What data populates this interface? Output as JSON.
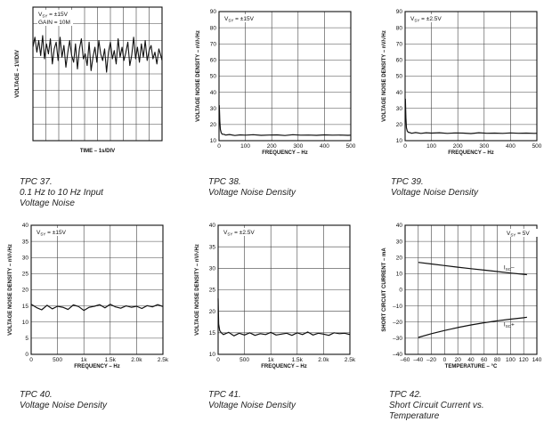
{
  "charts": [
    {
      "id": "tpc37",
      "caption_num": "TPC 37.",
      "caption_text": "0.1 Hz to 10 Hz Input\nVoltage Noise",
      "chart_data": {
        "type": "line",
        "xlabel": "TIME – 1s/DIV",
        "ylabel": "VOLTAGE – 1V/DIV",
        "annotations": [
          "VSY = ±15V",
          "GAIN = 10M"
        ],
        "divisions_x": 10,
        "divisions_y": 8,
        "x": [
          0,
          0.15,
          0.3,
          0.45,
          0.6,
          0.75,
          0.9,
          1.05,
          1.2,
          1.35,
          1.5,
          1.65,
          1.8,
          1.95,
          2.1,
          2.25,
          2.4,
          2.55,
          2.7,
          2.85,
          3.0,
          3.15,
          3.3,
          3.45,
          3.6,
          3.75,
          3.9,
          4.05,
          4.2,
          4.35,
          4.5,
          4.65,
          4.8,
          4.95,
          5.1,
          5.25,
          5.4,
          5.55,
          5.7,
          5.85,
          6.0,
          6.15,
          6.3,
          6.45,
          6.6,
          6.75,
          6.9,
          7.05,
          7.2,
          7.35,
          7.5,
          7.65,
          7.8,
          7.95,
          8.1,
          8.25,
          8.4,
          8.55,
          8.7,
          8.85,
          9.0,
          9.15,
          9.3,
          9.45,
          9.6,
          9.75,
          9.9,
          10.0
        ],
        "y": [
          5.6,
          6.2,
          5.3,
          6.0,
          5.1,
          6.3,
          4.9,
          5.8,
          5.2,
          6.1,
          4.6,
          5.5,
          5.9,
          4.8,
          6.2,
          5.0,
          5.7,
          4.4,
          5.3,
          6.0,
          5.1,
          4.7,
          5.8,
          4.3,
          5.5,
          6.1,
          4.9,
          5.2,
          4.5,
          5.9,
          4.2,
          5.0,
          5.6,
          4.7,
          6.0,
          5.2,
          4.8,
          5.5,
          4.1,
          5.3,
          5.9,
          4.9,
          5.4,
          4.6,
          6.1,
          5.0,
          5.6,
          4.8,
          5.3,
          5.9,
          4.5,
          5.1,
          6.2,
          4.9,
          5.6,
          4.7,
          5.8,
          5.0,
          6.0,
          4.8,
          5.4,
          5.7,
          4.9,
          5.3,
          4.6,
          5.5,
          5.1,
          4.8
        ]
      }
    },
    {
      "id": "tpc38",
      "caption_num": "TPC 38.",
      "caption_text": "Voltage Noise Density",
      "chart_data": {
        "type": "line",
        "xlabel": "FREQUENCY – Hz",
        "ylabel": "VOLTAGE NOISE DENSITY – nV/√Hz",
        "annotations": [
          "VSY = ±15V"
        ],
        "xlim": [
          0,
          500
        ],
        "ylim": [
          10,
          90
        ],
        "xticks": [
          "0",
          "100",
          "200",
          "300",
          "400",
          "500"
        ],
        "yticks": [
          "10",
          "20",
          "30",
          "40",
          "50",
          "60",
          "70",
          "80",
          "90"
        ],
        "x": [
          1,
          3,
          5,
          8,
          12,
          18,
          25,
          40,
          60,
          80,
          100,
          130,
          160,
          190,
          220,
          250,
          280,
          310,
          340,
          370,
          400,
          430,
          460,
          490,
          500
        ],
        "y": [
          32,
          22,
          17,
          15,
          14,
          14,
          13.5,
          13.8,
          13.2,
          13.6,
          13.4,
          13.7,
          13.3,
          13.5,
          13.6,
          13.2,
          13.7,
          13.4,
          13.5,
          13.3,
          13.6,
          13.4,
          13.5,
          13.3,
          13.4
        ]
      }
    },
    {
      "id": "tpc39",
      "caption_num": "TPC 39.",
      "caption_text": "Voltage Noise Density",
      "chart_data": {
        "type": "line",
        "xlabel": "FREQUENCY – Hz",
        "ylabel": "VOLTAGE NOISE DENSITY – nV/√Hz",
        "annotations": [
          "VSY = ±2.5V"
        ],
        "xlim": [
          0,
          500
        ],
        "ylim": [
          10,
          90
        ],
        "xticks": [
          "0",
          "100",
          "200",
          "300",
          "400",
          "500"
        ],
        "yticks": [
          "10",
          "20",
          "30",
          "40",
          "50",
          "60",
          "70",
          "80",
          "90"
        ],
        "x": [
          1,
          3,
          5,
          8,
          12,
          18,
          25,
          40,
          60,
          80,
          100,
          130,
          160,
          190,
          220,
          250,
          280,
          310,
          340,
          370,
          400,
          430,
          460,
          490,
          500
        ],
        "y": [
          36,
          24,
          18,
          16,
          15.2,
          15,
          14.6,
          15,
          14.5,
          14.9,
          14.7,
          14.9,
          14.5,
          14.8,
          14.7,
          14.4,
          14.9,
          14.6,
          14.7,
          14.5,
          14.8,
          14.6,
          14.7,
          14.5,
          14.6
        ]
      }
    },
    {
      "id": "tpc40",
      "caption_num": "TPC 40.",
      "caption_text": "Voltage Noise Density",
      "chart_data": {
        "type": "line",
        "xlabel": "FREQUENCY – Hz",
        "ylabel": "VOLTAGE NOISE DENSITY – nV/√Hz",
        "annotations": [
          "VSY = ±15V"
        ],
        "xlim": [
          0,
          2500
        ],
        "ylim": [
          0,
          40
        ],
        "xticks": [
          "0",
          "500",
          "1k",
          "1.5k",
          "2.0k",
          "2.5k"
        ],
        "yticks": [
          "0",
          "5",
          "10",
          "15",
          "20",
          "25",
          "30",
          "35",
          "40"
        ],
        "x": [
          0,
          100,
          200,
          300,
          400,
          500,
          600,
          700,
          800,
          900,
          1000,
          1100,
          1200,
          1300,
          1400,
          1500,
          1600,
          1700,
          1800,
          1900,
          2000,
          2100,
          2200,
          2300,
          2400,
          2500
        ],
        "y": [
          15.5,
          14.5,
          13.8,
          15.2,
          14.1,
          14.9,
          14.6,
          13.9,
          15.3,
          14.8,
          13.6,
          14.6,
          14.9,
          15.4,
          14.4,
          15.5,
          14.7,
          14.3,
          15.0,
          14.6,
          14.9,
          14.2,
          15.1,
          14.7,
          15.4,
          14.8
        ]
      }
    },
    {
      "id": "tpc41",
      "caption_num": "TPC 41.",
      "caption_text": "Voltage Noise Density",
      "chart_data": {
        "type": "line",
        "xlabel": "FREQUENCY – Hz",
        "ylabel": "VOLTAGE NOISE DENSITY – nV/√Hz",
        "annotations": [
          "VSY = ±2.5V"
        ],
        "xlim": [
          0,
          2500
        ],
        "ylim": [
          10,
          40
        ],
        "xticks": [
          "0",
          "500",
          "1k",
          "1.5k",
          "2.0k",
          "2.5k"
        ],
        "yticks": [
          "10",
          "15",
          "20",
          "25",
          "30",
          "35",
          "40"
        ],
        "x": [
          0,
          10,
          30,
          60,
          100,
          200,
          300,
          400,
          500,
          600,
          700,
          800,
          900,
          1000,
          1100,
          1200,
          1300,
          1400,
          1500,
          1600,
          1700,
          1800,
          1900,
          2000,
          2100,
          2200,
          2300,
          2400,
          2500
        ],
        "y": [
          23,
          17,
          15.5,
          15.0,
          14.6,
          15.1,
          14.3,
          14.9,
          14.5,
          15.0,
          14.4,
          14.8,
          14.6,
          15.1,
          14.5,
          14.7,
          14.9,
          14.4,
          15.0,
          14.6,
          15.2,
          14.5,
          14.9,
          14.7,
          14.4,
          15.0,
          14.8,
          14.9,
          14.6
        ]
      }
    },
    {
      "id": "tpc42",
      "caption_num": "TPC 42.",
      "caption_text": "Short Circuit Current vs.\nTemperature",
      "chart_data": {
        "type": "line",
        "xlabel": "TEMPERATURE – °C",
        "ylabel": "SHORT CIRCUIT CURRENT – mA",
        "annotations": [
          "VSY = 5V"
        ],
        "xlim": [
          -60,
          140
        ],
        "ylim": [
          -40,
          40
        ],
        "xticks": [
          "–60",
          "–40",
          "–20",
          "0",
          "20",
          "40",
          "60",
          "80",
          "100",
          "120",
          "140"
        ],
        "yticks": [
          "–40",
          "–30",
          "–20",
          "–10",
          "0",
          "10",
          "20",
          "30",
          "40"
        ],
        "series": [
          {
            "name": "ISC–",
            "x": [
              -40,
              -20,
              0,
              20,
              40,
              60,
              80,
              100,
              120,
              125
            ],
            "y": [
              17.0,
              16.0,
              15.0,
              14.0,
              13.1,
              12.2,
              11.3,
              10.4,
              9.6,
              9.4
            ]
          },
          {
            "name": "ISC+",
            "x": [
              -40,
              -20,
              0,
              20,
              40,
              60,
              80,
              100,
              120,
              125
            ],
            "y": [
              -29.5,
              -27.2,
              -25.2,
              -23.4,
              -21.8,
              -20.4,
              -19.2,
              -18.2,
              -17.3,
              -17.0
            ]
          }
        ]
      }
    }
  ]
}
